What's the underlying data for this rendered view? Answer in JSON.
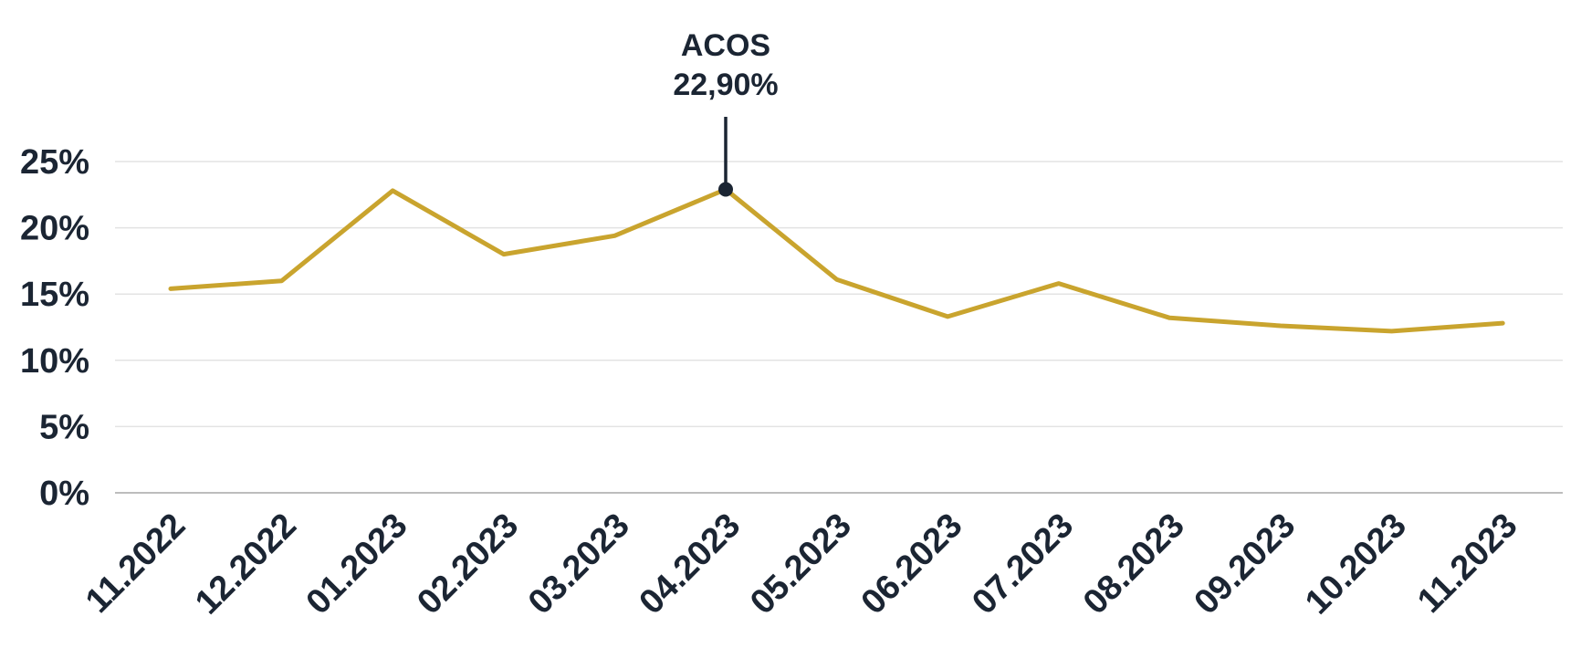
{
  "chart_data": {
    "type": "line",
    "categories": [
      "11.2022",
      "12.2022",
      "01.2023",
      "02.2023",
      "03.2023",
      "04.2023",
      "05.2023",
      "06.2023",
      "07.2023",
      "08.2023",
      "09.2023",
      "10.2023",
      "11.2023"
    ],
    "series": [
      {
        "values": [
          15.4,
          16.0,
          22.8,
          18.0,
          19.4,
          22.9,
          16.1,
          13.3,
          15.8,
          13.2,
          12.6,
          12.2,
          12.8
        ],
        "color": "#c9a42e"
      }
    ],
    "ylim": [
      0,
      25
    ],
    "yticks": [
      0,
      5,
      10,
      15,
      20,
      25
    ],
    "ytick_labels": [
      "0%",
      "5%",
      "10%",
      "15%",
      "20%",
      "25%"
    ],
    "grid": true,
    "annotation": {
      "category": "04.2023",
      "value": 22.9,
      "label": "ACOS",
      "value_label": "22,90%"
    },
    "colors": {
      "line": "#c9a42e",
      "text": "#1b2533",
      "grid": "#e3e3e3",
      "axis": "#bdbdbd"
    }
  }
}
